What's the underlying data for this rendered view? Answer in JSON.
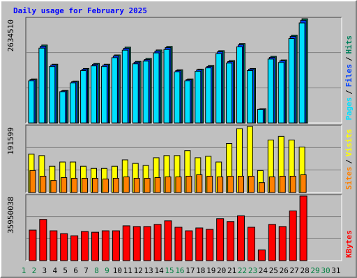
{
  "title": "Daily usage for February 2025",
  "title_color": "#0000FF",
  "separator": "/",
  "categories": [
    "1",
    "2",
    "3",
    "4",
    "5",
    "6",
    "7",
    "8",
    "9",
    "10",
    "11",
    "12",
    "13",
    "14",
    "15",
    "16",
    "17",
    "18",
    "19",
    "20",
    "21",
    "22",
    "23",
    "24",
    "25",
    "26",
    "27",
    "28",
    "29",
    "30",
    "31"
  ],
  "weekend": [
    0,
    1,
    7,
    8,
    14,
    15,
    21,
    22,
    28,
    29
  ],
  "weekend_color": "#008040",
  "chart_data": [
    {
      "type": "bar",
      "grid": true,
      "ylim": [
        0,
        2634510
      ],
      "series": [
        {
          "name": "Pages",
          "color": "#00E0FF",
          "values": [
            null,
            1066700,
            1892600,
            1428000,
            791400,
            1015100,
            1324800,
            1445200,
            1428000,
            1651700,
            1840900,
            1496800,
            1565700,
            1772100,
            1858200,
            1290400,
            1066700,
            1307600,
            1393600,
            1754900,
            1514100,
            1927000,
            1324800,
            344100,
            1617300,
            1531300,
            2133400,
            2529100,
            null,
            null,
            null
          ]
        },
        {
          "name": "Files",
          "color": "#0040FF",
          "values": [
            null,
            1094500,
            1941800,
            1465200,
            812000,
            1041500,
            1359300,
            1482900,
            1465200,
            1694700,
            1888900,
            1535800,
            1606400,
            1818300,
            1906500,
            1324000,
            1094500,
            1341600,
            1429900,
            1800600,
            1553500,
            1977200,
            1359300,
            353100,
            1659400,
            1571100,
            2189000,
            2595000,
            null,
            null,
            null
          ]
        },
        {
          "name": "Hits",
          "color": "#00805C",
          "values": [
            null,
            1111164,
            1971420,
            1487526,
            824412,
            1057398,
            1379994,
            1505448,
            1487526,
            1720512,
            1917654,
            1559214,
            1630902,
            1845966,
            1935576,
            1344150,
            1111164,
            1362072,
            1451682,
            1828044,
            1577136,
            2007264,
            1379994,
            358440,
            1684668,
            1595058,
            2222328,
            2634510,
            null,
            null,
            null
          ]
        }
      ]
    },
    {
      "type": "bar",
      "grid": true,
      "ylim": [
        0,
        191599
      ],
      "series": [
        {
          "name": "Sites",
          "color": "#FF8000",
          "values": [
            null,
            63860,
            47380,
            35020,
            43260,
            41200,
            41200,
            41200,
            39140,
            41200,
            45320,
            41200,
            41200,
            43260,
            45320,
            45320,
            47380,
            51500,
            47380,
            45320,
            47380,
            47380,
            47380,
            28840,
            45320,
            47380,
            47380,
            51500,
            null,
            null,
            null
          ]
        },
        {
          "name": "Visits",
          "color": "#FFFF00",
          "values": [
            null,
            111240,
            107120,
            76220,
            88580,
            88580,
            76220,
            70040,
            70040,
            76220,
            94760,
            84460,
            78280,
            100940,
            107120,
            107120,
            121540,
            100940,
            105060,
            88580,
            142140,
            185400,
            191599,
            63860,
            152440,
            162740,
            152440,
            131840,
            null,
            null,
            null
          ]
        }
      ]
    },
    {
      "type": "bar",
      "grid": true,
      "ylim": [
        0,
        35950038
      ],
      "series": [
        {
          "name": "KBytes",
          "color": "#FF0000",
          "values": [
            null,
            16987365,
            22913190,
            16592310,
            15012090,
            13826925,
            16197255,
            15802200,
            16592310,
            16592310,
            19357695,
            18962640,
            18962640,
            20147805,
            22123080,
            18567585,
            16592310,
            18172530,
            17382420,
            23308245,
            21728025,
            24888465,
            18567585,
            5925825,
            20147805,
            18962640,
            27653850,
            35950038,
            null,
            null,
            null
          ]
        }
      ]
    }
  ]
}
